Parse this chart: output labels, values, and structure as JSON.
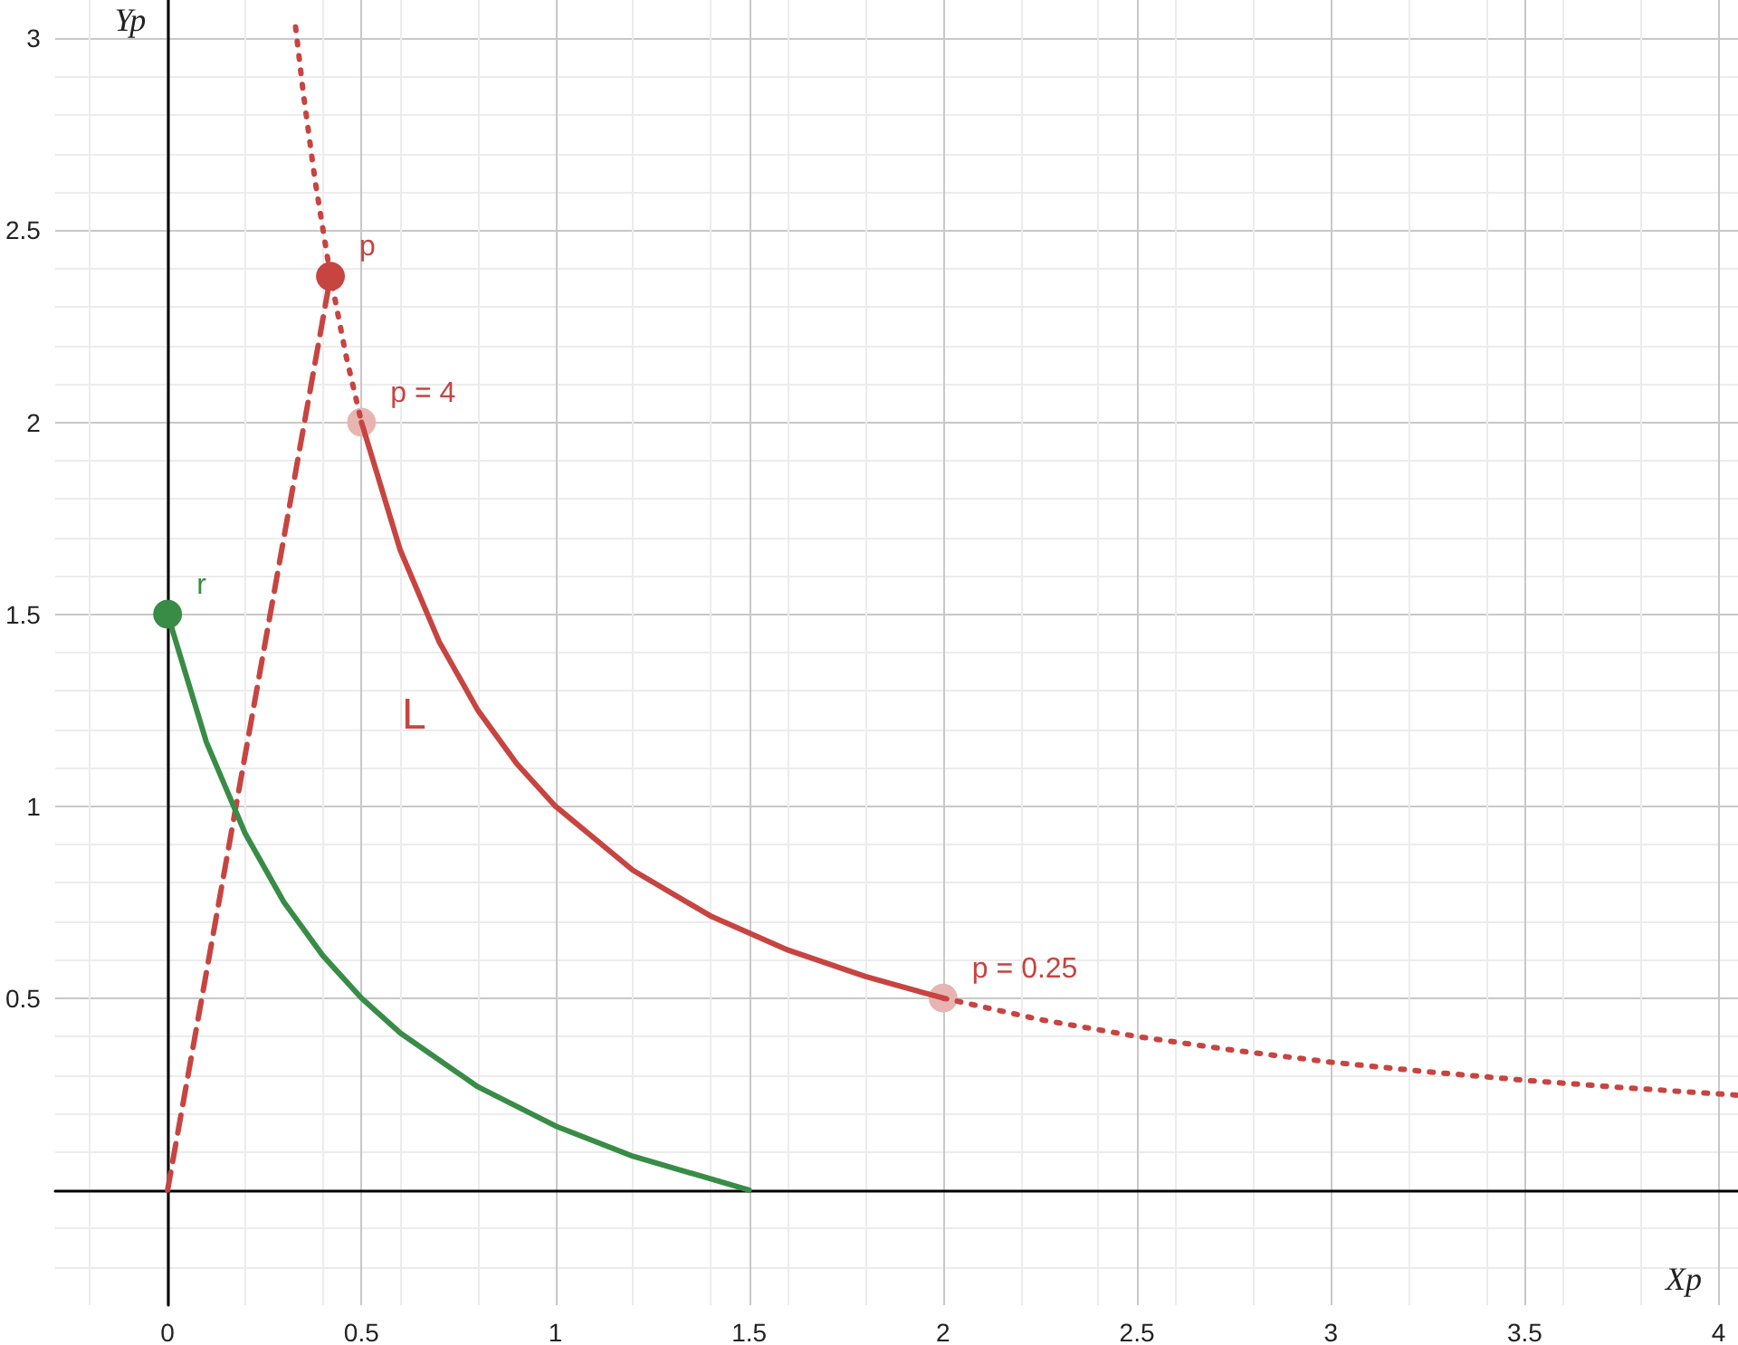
{
  "chart_data": {
    "type": "line",
    "xlabel": "Xp",
    "ylabel": "Yp",
    "xlim": [
      -0.29,
      4.05
    ],
    "ylim": [
      -0.3,
      3.1
    ],
    "xticks": [
      0,
      0.5,
      1,
      1.5,
      2,
      2.5,
      3,
      3.5,
      4
    ],
    "yticks": [
      0.5,
      1,
      1.5,
      2,
      2.5,
      3
    ],
    "grid": true,
    "series": [
      {
        "color": "#c74440",
        "line_style": "dotted",
        "x": [
          0.33,
          0.35,
          0.38,
          0.42,
          0.46,
          0.5
        ],
        "values": [
          3.03,
          2.857,
          2.632,
          2.381,
          2.174,
          2
        ]
      },
      {
        "color": "#c74440",
        "line_style": "solid",
        "x": [
          0.5,
          0.6,
          0.7,
          0.8,
          0.9,
          1,
          1.2,
          1.4,
          1.6,
          1.8,
          2
        ],
        "values": [
          2,
          1.667,
          1.429,
          1.25,
          1.111,
          1,
          0.833,
          0.714,
          0.625,
          0.556,
          0.5
        ]
      },
      {
        "color": "#c74440",
        "line_style": "dotted",
        "x": [
          2,
          2.25,
          2.5,
          2.75,
          3,
          3.25,
          3.5,
          3.75,
          4.05
        ],
        "values": [
          0.5,
          0.444,
          0.4,
          0.364,
          0.333,
          0.308,
          0.286,
          0.267,
          0.247
        ]
      },
      {
        "color": "#c74440",
        "line_style": "dashed",
        "x": [
          0,
          0.42
        ],
        "values": [
          0,
          2.38
        ]
      },
      {
        "color": "#388c46",
        "line_style": "solid",
        "x": [
          0,
          0.1,
          0.2,
          0.3,
          0.4,
          0.5,
          0.6,
          0.8,
          1,
          1.2,
          1.5
        ],
        "values": [
          1.5,
          1.167,
          0.929,
          0.75,
          0.611,
          0.5,
          0.409,
          0.269,
          0.167,
          0.088,
          0
        ]
      },
      {
        "type": "scatter",
        "color": "#c74440",
        "marker": "circle",
        "x": [
          0.42
        ],
        "values": [
          2.38
        ]
      },
      {
        "type": "scatter",
        "color": "#388c46",
        "marker": "circle",
        "x": [
          0
        ],
        "values": [
          1.5
        ]
      },
      {
        "type": "scatter",
        "color": "#e8b4b2",
        "marker": "circle",
        "x": [
          0.5,
          2
        ],
        "values": [
          2,
          0.5
        ]
      }
    ],
    "annotations": [
      {
        "text": "p",
        "x": 0.42,
        "y": 2.38
      },
      {
        "text": "r",
        "x": 0,
        "y": 1.5
      },
      {
        "text": "p = 4",
        "x": 0.5,
        "y": 2
      },
      {
        "text": "p = 0.25",
        "x": 2,
        "y": 0.5
      },
      "L"
    ]
  }
}
